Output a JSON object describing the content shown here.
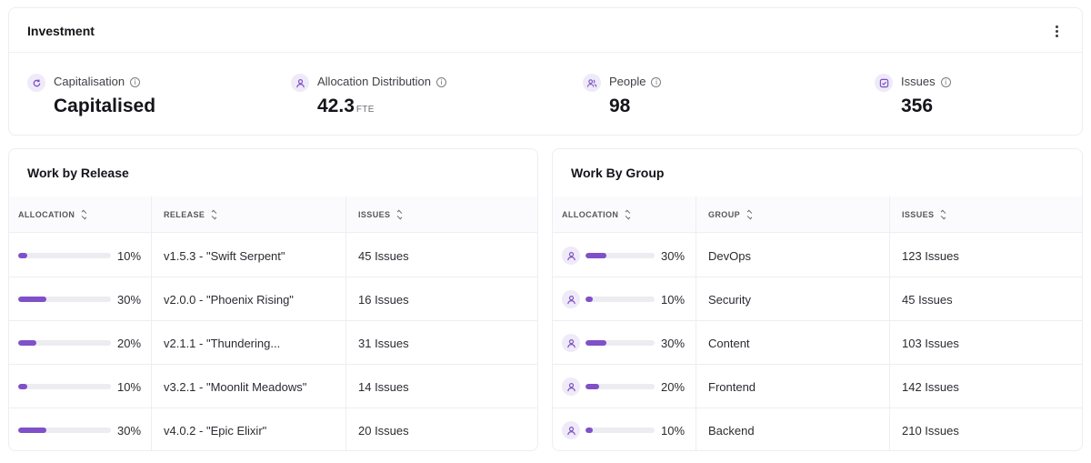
{
  "investment": {
    "title": "Investment",
    "metrics": [
      {
        "label": "Capitalisation",
        "value": "Capitalised",
        "unit": "",
        "icon": "refresh-icon"
      },
      {
        "label": "Allocation Distribution",
        "value": "42.3",
        "unit": "FTE",
        "icon": "user-icon"
      },
      {
        "label": "People",
        "value": "98",
        "unit": "",
        "icon": "users-icon"
      },
      {
        "label": "Issues",
        "value": "356",
        "unit": "",
        "icon": "check-square-icon"
      }
    ]
  },
  "release": {
    "title": "Work by Release",
    "columns": [
      "ALLOCATION",
      "RELEASE",
      "ISSUES"
    ],
    "rows": [
      {
        "allocation": 10,
        "pct": "10%",
        "name": "v1.5.3 - \"Swift Serpent\"",
        "issues": "45 Issues"
      },
      {
        "allocation": 30,
        "pct": "30%",
        "name": "v2.0.0 - \"Phoenix Rising\"",
        "issues": "16 Issues"
      },
      {
        "allocation": 20,
        "pct": "20%",
        "name": "v2.1.1 - \"Thundering...",
        "issues": "31 Issues"
      },
      {
        "allocation": 10,
        "pct": "10%",
        "name": "v3.2.1 - \"Moonlit Meadows\"",
        "issues": "14 Issues"
      },
      {
        "allocation": 30,
        "pct": "30%",
        "name": "v4.0.2 - \"Epic Elixir\"",
        "issues": "20 Issues"
      }
    ]
  },
  "group": {
    "title": "Work By Group",
    "columns": [
      "ALLOCATION",
      "GROUP",
      "ISSUES"
    ],
    "rows": [
      {
        "allocation": 30,
        "pct": "30%",
        "name": "DevOps",
        "issues": "123 Issues"
      },
      {
        "allocation": 10,
        "pct": "10%",
        "name": "Security",
        "issues": "45 Issues"
      },
      {
        "allocation": 30,
        "pct": "30%",
        "name": "Content",
        "issues": "103 Issues"
      },
      {
        "allocation": 20,
        "pct": "20%",
        "name": "Frontend",
        "issues": "142 Issues"
      },
      {
        "allocation": 10,
        "pct": "10%",
        "name": "Backend",
        "issues": "210 Issues"
      }
    ]
  },
  "colors": {
    "accent": "#8050c8",
    "track": "#ececf1",
    "icon_bg": "#efeaf8"
  }
}
